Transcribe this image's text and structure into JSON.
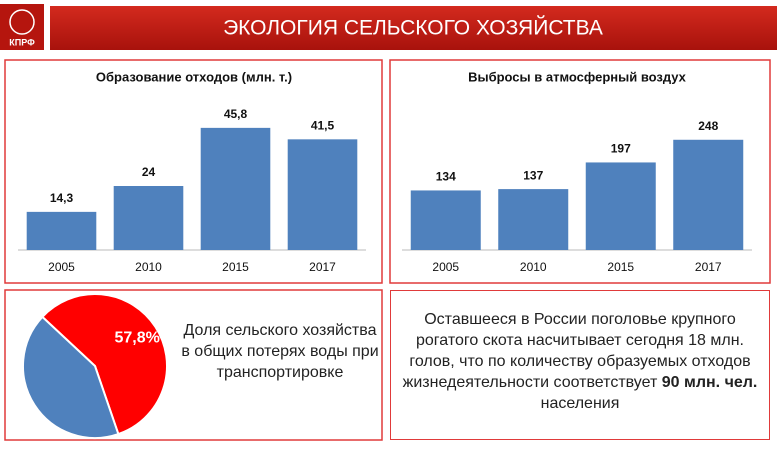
{
  "header": {
    "title": "ЭКОЛОГИЯ СЕЛЬСКОГО ХОЗЯЙСТВА",
    "logo": "КПРФ"
  },
  "chart_data": [
    {
      "type": "bar",
      "title": "Образование отходов (млн. т.)",
      "categories": [
        "2005",
        "2010",
        "2015",
        "2017"
      ],
      "values": [
        14.3,
        24,
        45.8,
        41.5
      ],
      "value_labels": [
        "14,3",
        "24",
        "45,8",
        "41,5"
      ],
      "color": "#4f81bd",
      "ylim": [
        0,
        60
      ]
    },
    {
      "type": "bar",
      "title": "Выбросы в атмосферный воздух",
      "categories": [
        "2005",
        "2010",
        "2015",
        "2017"
      ],
      "values": [
        134,
        137,
        197,
        248
      ],
      "color": "#4f81bd",
      "ylim": [
        0,
        360
      ]
    },
    {
      "type": "pie",
      "values": [
        57.8,
        42.2
      ],
      "value_labels": [
        "57,8%",
        null
      ],
      "colors": [
        "#ff0000",
        "#4f81bd"
      ],
      "caption": "Доля сельского хозяйства в общих потерях воды при транспортировке"
    }
  ],
  "note": {
    "before": "Оставшееся в России поголовье крупного рогатого скота насчитывает сегодня 18 млн. голов, что по количеству образуемых отходов жизнедеятельности соответствует",
    "bold": "90 млн. чел.",
    "after": "населения"
  }
}
